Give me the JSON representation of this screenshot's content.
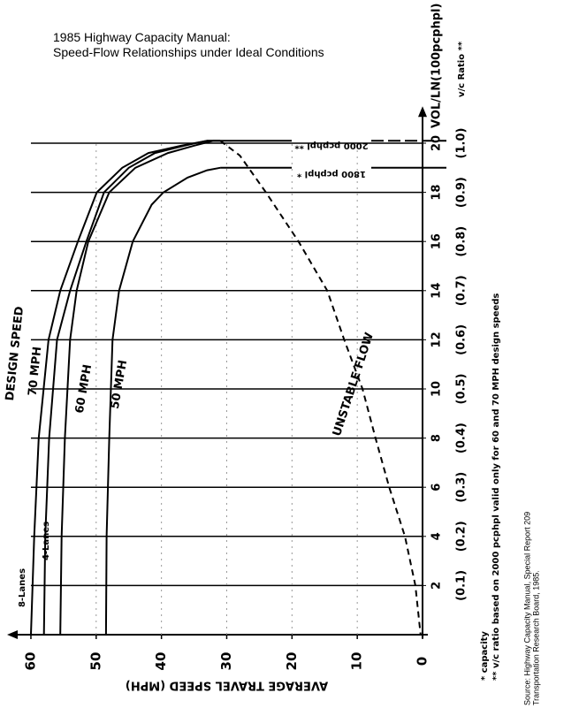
{
  "chart_data": {
    "type": "line",
    "title": "1985 Highway Capacity Manual:",
    "subtitle": "Speed-Flow Relationships under Ideal Conditions",
    "xlabel": "AVERAGE TRAVEL SPEED (MPH)",
    "ylabel": "VOL/LN(100pcphpl)",
    "y2label": "v/c Ratio **",
    "xlim": [
      62,
      0
    ],
    "xticks": [
      0,
      10,
      20,
      30,
      40,
      50,
      60
    ],
    "ylim": [
      0,
      21
    ],
    "yticks": [
      2,
      4,
      6,
      8,
      10,
      12,
      14,
      16,
      18,
      20
    ],
    "y2lim": [
      0,
      1.05
    ],
    "y2ticks": [
      {
        "value": 0.1,
        "label": "(0.1)"
      },
      {
        "value": 0.2,
        "label": "(0.2)"
      },
      {
        "value": 0.3,
        "label": "(0.3)"
      },
      {
        "value": 0.4,
        "label": "(0.4)"
      },
      {
        "value": 0.5,
        "label": "(0.5)"
      },
      {
        "value": 0.6,
        "label": "(0.6)"
      },
      {
        "value": 0.7,
        "label": "(0.7)"
      },
      {
        "value": 0.8,
        "label": "(0.8)"
      },
      {
        "value": 0.9,
        "label": "(0.9)"
      },
      {
        "value": 1.0,
        "label": "(1.0)"
      }
    ],
    "grid": true,
    "series": [
      {
        "name": "8-Lanes",
        "color": "#000000",
        "dashed": false,
        "x": [
          60,
          59.5,
          58.8,
          57.3,
          55.5,
          52.8,
          49.9,
          46,
          42,
          37,
          33,
          31
        ],
        "values": [
          0,
          4,
          8,
          12,
          14,
          16,
          18,
          19,
          19.6,
          19.9,
          20.1,
          20.1
        ]
      },
      {
        "name": "4-Lanes",
        "color": "#000000",
        "dashed": false,
        "x": [
          58,
          57.8,
          57.2,
          56,
          54,
          51.5,
          48.8,
          45,
          41,
          36.5,
          33,
          31
        ],
        "values": [
          0,
          4,
          8,
          12,
          14,
          16,
          18,
          19,
          19.6,
          19.9,
          20.1,
          20.1
        ]
      },
      {
        "name": "60 MPH",
        "color": "#000000",
        "dashed": false,
        "x": [
          55.5,
          55.3,
          54.8,
          54,
          53,
          51.2,
          48,
          44,
          39,
          35,
          32,
          31
        ],
        "values": [
          0,
          4,
          8,
          12,
          14,
          16,
          18,
          19,
          19.6,
          19.9,
          20.1,
          20.1
        ]
      },
      {
        "name": "50 MPH",
        "color": "#000000",
        "dashed": false,
        "x": [
          48.5,
          48.4,
          48,
          47.5,
          46.5,
          44.4,
          41.5,
          39.7,
          36,
          33,
          31
        ],
        "values": [
          0,
          4,
          8,
          12,
          14,
          16,
          17.5,
          18,
          18.6,
          18.9,
          19
        ]
      },
      {
        "name": "UNSTABLE FLOW",
        "color": "#000000",
        "dashed": true,
        "x": [
          31,
          28,
          24,
          19,
          14.6,
          12,
          9.2,
          7.2,
          5.1,
          2.7,
          1.1,
          0.3
        ],
        "values": [
          20.1,
          19.5,
          18,
          16,
          14,
          12,
          10,
          8,
          6,
          4,
          2,
          0
        ]
      }
    ],
    "annotations": [
      "DESIGN SPEED",
      "70 MPH",
      "2000 pcphpl **",
      "1800 pcphpl *"
    ],
    "footnotes": [
      "* capacity",
      "** v/c ratio based on 2000 pcphpl valid only for 60 and 70 MPH design speeds"
    ],
    "source": [
      "Source: Highway Capacity Manual, Special Report 209",
      "Transportation Research Board, 1985."
    ]
  }
}
